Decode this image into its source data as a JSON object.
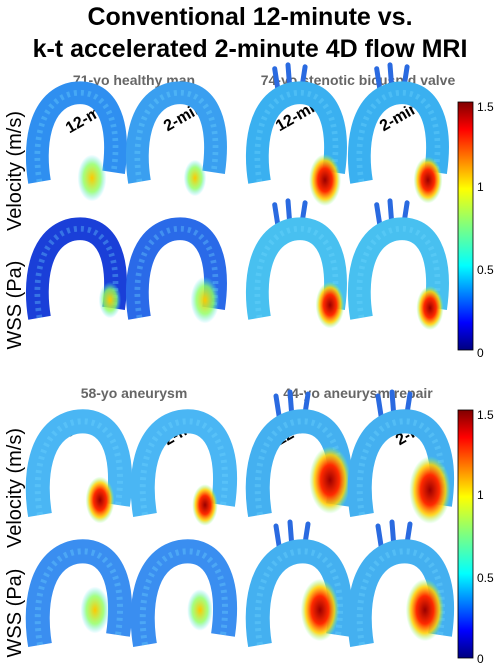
{
  "title": {
    "line1": "Conventional 12-minute vs.",
    "line2": "k-t accelerated 2-minute 4D flow MRI"
  },
  "cases": [
    {
      "label": "71-yo healthy man"
    },
    {
      "label": "74-yo stenotic bicuspid valve"
    },
    {
      "label": "58-yo aneurysm"
    },
    {
      "label": "44-yo aneurysm repair"
    }
  ],
  "columns": {
    "conventional": "12-min",
    "accelerated": "2-min"
  },
  "rows": {
    "velocity": "Velocity (m/s)",
    "wss": "WSS (Pa)"
  },
  "colorbar": {
    "top": {
      "ticks": [
        "1.5",
        "1",
        "0.5",
        "0"
      ]
    },
    "bottom": {
      "ticks": [
        "1.5",
        "1",
        "0.5",
        "0"
      ]
    },
    "colormap": "jet"
  }
}
